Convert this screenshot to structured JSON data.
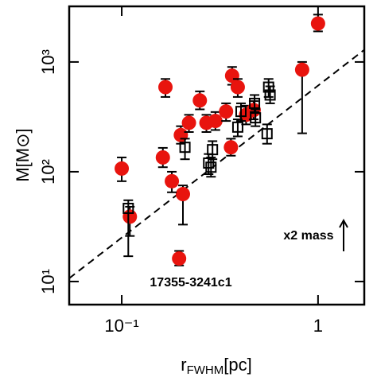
{
  "chart_data": {
    "type": "scatter",
    "xlabel": [
      "r",
      "FWHM",
      "[pc]"
    ],
    "ylabel": "M[M⊙]",
    "xlog": true,
    "ylog": true,
    "xlim": [
      0.054,
      1.72
    ],
    "ylim": [
      6.16,
      3210
    ],
    "xticks": [
      {
        "value": 0.1,
        "label": "10⁻¹"
      },
      1
    ],
    "yticks": [
      {
        "value": 10,
        "label": "10¹"
      },
      {
        "value": 100,
        "label": "10²"
      },
      {
        "value": 1000,
        "label": "10³"
      }
    ],
    "series": [
      {
        "marker": "circle",
        "color": "#e8140e",
        "x": [
          1.0,
          0.83,
          0.1,
          0.11,
          0.196,
          0.205,
          0.167,
          0.162,
          0.18,
          0.2,
          0.22,
          0.25,
          0.27,
          0.3,
          0.365,
          0.39,
          0.36,
          0.34,
          0.43,
          0.47
        ],
        "values": [
          2240,
          850,
          107,
          39,
          16.2,
          62.6,
          590,
          135,
          82,
          216,
          279,
          446,
          279,
          290,
          750,
          590,
          167,
          354,
          330,
          365
        ],
        "err_low": [
          1900,
          224,
          82,
          26,
          14,
          33,
          480,
          110,
          65,
          180,
          230,
          370,
          230,
          240,
          620,
          480,
          140,
          290,
          270,
          300
        ],
        "err_high": [
          2700,
          1000,
          135,
          48,
          19,
          75,
          700,
          165,
          100,
          260,
          330,
          540,
          330,
          350,
          900,
          700,
          200,
          420,
          400,
          440
        ]
      },
      {
        "marker": "square",
        "color": "#000000",
        "x": [
          0.108,
          0.21,
          0.277,
          0.285,
          0.29,
          0.405,
          0.475,
          0.55,
          0.57,
          0.56,
          0.39,
          0.48
        ],
        "values": [
          46.4,
          167,
          120,
          110,
          159,
          354,
          420,
          222,
          500,
          590,
          255,
          310
        ],
        "err_low": [
          17,
          130,
          95,
          90,
          130,
          290,
          350,
          180,
          420,
          480,
          210,
          260
        ],
        "err_high": [
          55,
          200,
          145,
          135,
          190,
          420,
          500,
          270,
          600,
          700,
          300,
          370
        ]
      }
    ],
    "reference_line": {
      "x": [
        0.054,
        1.72
      ],
      "y": [
        10.7,
        1290
      ]
    },
    "annotations": [
      "17355-3241c1",
      "x2 mass"
    ]
  }
}
